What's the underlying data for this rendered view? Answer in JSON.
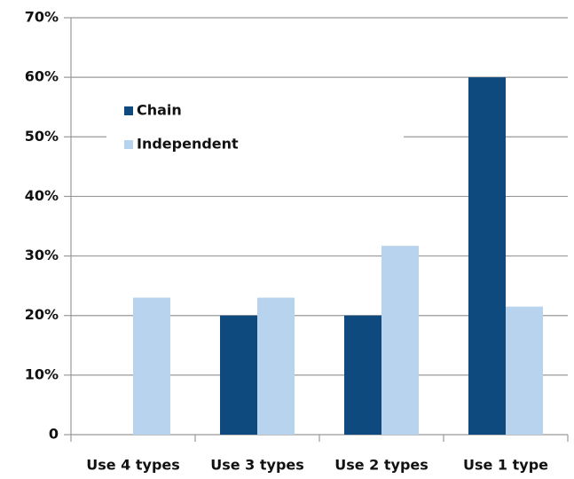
{
  "chart_data": {
    "type": "bar",
    "categories": [
      "Use 4 types",
      "Use 3 types",
      "Use 2 types",
      "Use 1 type"
    ],
    "series": [
      {
        "name": "Chain",
        "color": "#0f4a7e",
        "values": [
          0,
          20,
          20,
          60
        ]
      },
      {
        "name": "Independent",
        "color": "#b8d3ee",
        "values": [
          23,
          23,
          31.7,
          21.5
        ]
      }
    ],
    "ylim": [
      0,
      70
    ],
    "yticks": [
      0,
      {
        "value": 10,
        "label": "10%"
      },
      {
        "value": 20,
        "label": "20%"
      },
      {
        "value": 30,
        "label": "30%"
      },
      {
        "value": 40,
        "label": "40%"
      },
      {
        "value": 50,
        "label": "50%"
      },
      {
        "value": 60,
        "label": "60%"
      },
      {
        "value": 70,
        "label": "70%"
      }
    ],
    "grid": true,
    "legend": "upper left"
  }
}
